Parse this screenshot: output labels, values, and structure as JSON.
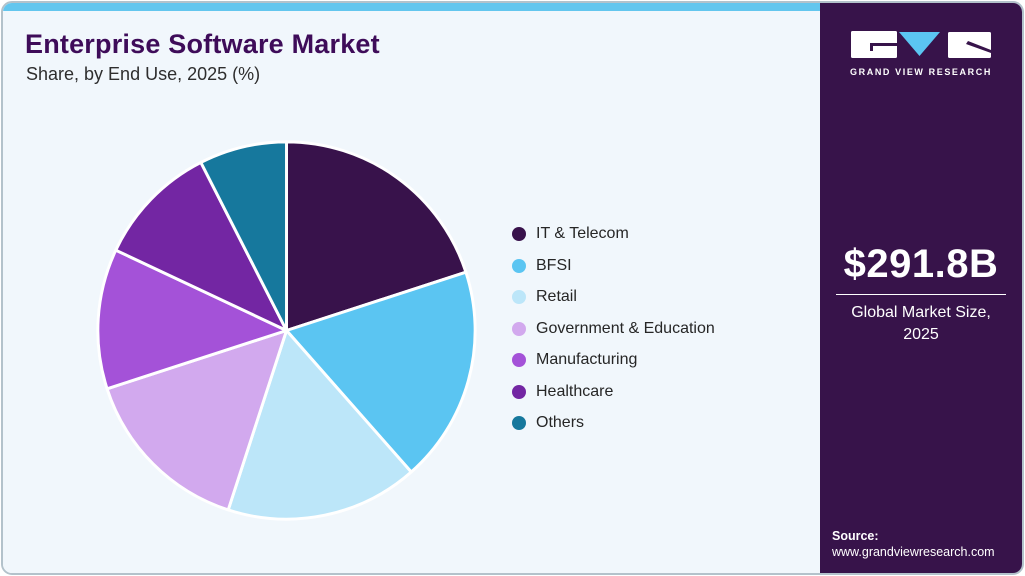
{
  "header": {
    "title": "Enterprise Software Market",
    "subtitle": "Share, by End Use, 2025 (%)"
  },
  "chart_data": {
    "type": "pie",
    "title": "Enterprise Software Market Share, by End Use, 2025 (%)",
    "unit": "%",
    "categories": [
      "IT & Telecom",
      "BFSI",
      "Retail",
      "Government & Education",
      "Manufacturing",
      "Healthcare",
      "Others"
    ],
    "values": [
      20,
      18.5,
      16.5,
      15,
      12,
      10.5,
      7.5
    ],
    "colors": [
      "#38124B",
      "#5BC5F2",
      "#BCE6F9",
      "#D2A9EE",
      "#A452D8",
      "#7326A3",
      "#16789D"
    ],
    "legend_position": "right",
    "start_angle_deg": 0,
    "direction": "clockwise",
    "slice_separator_color": "#FFFFFF"
  },
  "sidebar": {
    "brand": {
      "logo_text": "GRAND VIEW RESEARCH"
    },
    "stat": {
      "value": "$291.8B",
      "label": "Global Market Size, 2025"
    },
    "source": {
      "label": "Source:",
      "url": "www.grandviewresearch.com"
    }
  },
  "theme": {
    "accent_bar": "#63C6EE",
    "main_bg": "#F1F7FC",
    "sidebar_bg": "#37134A",
    "title_color": "#3E0C59",
    "logo_triangle": "#5BC5F2"
  }
}
